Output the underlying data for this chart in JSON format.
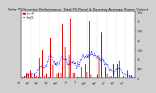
{
  "title": "Solar PV/Inverter Performance  Total PV Panel & Running Average Power Output",
  "title_fontsize": 3.2,
  "background_color": "#d0d0d0",
  "plot_bg": "#ffffff",
  "bar_color": "#dd0000",
  "avg_line_color": "#0000ff",
  "legend_line_color": "#cc0000",
  "ylim": [
    0,
    3500
  ],
  "yticks_right": [
    0,
    500,
    1000,
    1500,
    2000,
    2500,
    3000,
    3500
  ],
  "ytick_labels_right": [
    "0",
    "500",
    "1k",
    "1.5k",
    "2k",
    "2.5k",
    "3k",
    "3.5k"
  ],
  "num_points": 365,
  "seed": 7
}
